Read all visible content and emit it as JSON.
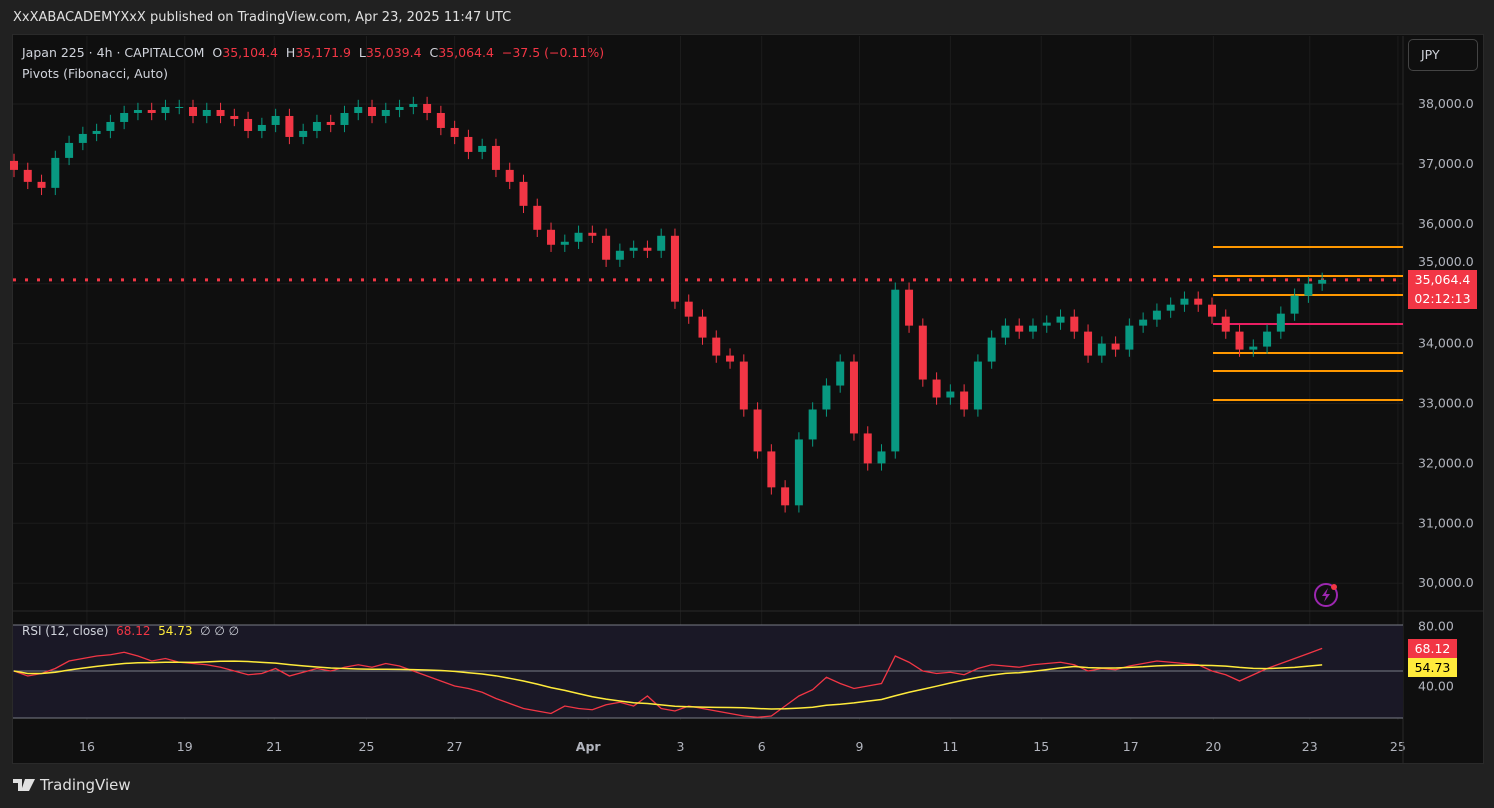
{
  "header": {
    "published": "XxXABACADEMYXxX published on TradingView.com, Apr 23, 2025 11:47 UTC"
  },
  "legend": {
    "symbol": "Japan 225 · 4h · CAPITALCOM",
    "o_label": "O",
    "o": "35,104.4",
    "h_label": "H",
    "h": "35,171.9",
    "l_label": "L",
    "l": "35,039.4",
    "c_label": "C",
    "c": "35,064.4",
    "change": "−37.5 (−0.11%)",
    "indicator": "Pivots (Fibonacci, Auto)"
  },
  "currency": "JPY",
  "current": {
    "price": "35,064.4",
    "countdown": "02:12:13"
  },
  "rsi": {
    "label": "RSI (12, close)",
    "value": "68.12",
    "ma": "54.73",
    "extra": "∅ ∅ ∅",
    "axis": [
      "80.00",
      "40.00"
    ]
  },
  "footer": {
    "brand": "TradingView"
  },
  "colors": {
    "up": "#089981",
    "down": "#f23645",
    "pivot": "#ff9800",
    "pivot_p": "#e91e63",
    "rsi": "#f23645",
    "rsi_ma": "#ffeb3b"
  },
  "chart_data": {
    "type": "candlestick",
    "title": "Japan 225 · 4h · CAPITALCOM",
    "ylim": [
      29550,
      38500
    ],
    "y_ticks": [
      "38,000.0",
      "37,000.0",
      "36,000.0",
      "35,000.0",
      "34,000.0",
      "33,000.0",
      "32,000.0",
      "31,000.0",
      "30,000.0"
    ],
    "y_tick_values": [
      38000,
      37000,
      36000,
      35000,
      34000,
      33000,
      32000,
      31000,
      30000
    ],
    "x_ticks": [
      {
        "label": "16",
        "index": 5.3
      },
      {
        "label": "19",
        "index": 12.4
      },
      {
        "label": "21",
        "index": 18.9
      },
      {
        "label": "25",
        "index": 25.6
      },
      {
        "label": "27",
        "index": 32
      },
      {
        "label": "Apr",
        "index": 41.7
      },
      {
        "label": "3",
        "index": 48.4
      },
      {
        "label": "6",
        "index": 54.3
      },
      {
        "label": "9",
        "index": 61.4
      },
      {
        "label": "11",
        "index": 68
      },
      {
        "label": "15",
        "index": 74.6
      },
      {
        "label": "17",
        "index": 81.1
      },
      {
        "label": "20",
        "index": 87.1
      },
      {
        "label": "23",
        "index": 94.1
      },
      {
        "label": "25",
        "index": 100.5
      }
    ],
    "close": [
      36900,
      36700,
      36600,
      37100,
      37350,
      37500,
      37550,
      37700,
      37850,
      37900,
      37850,
      37950,
      37950,
      37800,
      37900,
      37800,
      37750,
      37550,
      37650,
      37800,
      37450,
      37550,
      37700,
      37650,
      37850,
      37950,
      37800,
      37900,
      37950,
      38000,
      37850,
      37600,
      37450,
      37200,
      37300,
      36900,
      36700,
      36300,
      35900,
      35650,
      35700,
      35850,
      35800,
      35400,
      35550,
      35600,
      35550,
      35800,
      34700,
      34450,
      34100,
      33800,
      33700,
      32900,
      32200,
      31600,
      31300,
      32400,
      32900,
      33300,
      33700,
      32500,
      32000,
      32200,
      34900,
      34300,
      33400,
      33100,
      33200,
      32900,
      33700,
      34100,
      34300,
      34200,
      34300,
      34350,
      34450,
      34200,
      33800,
      34000,
      33900,
      34300,
      34400,
      34550,
      34650,
      34750,
      34650,
      34450,
      34200,
      33900,
      33950,
      34200,
      34500,
      34800,
      35000,
      35064.4
    ],
    "current_price": 35064.4,
    "pivots": [
      35613,
      35129,
      34811,
      34327,
      33843,
      33543,
      33058
    ],
    "rsi": [
      50,
      46,
      48,
      52,
      58,
      60,
      62,
      63,
      65,
      62,
      58,
      60,
      57,
      56,
      55,
      53,
      50,
      47,
      48,
      52,
      46,
      49,
      52,
      50,
      53,
      55,
      53,
      56,
      54,
      50,
      46,
      42,
      38,
      36,
      33,
      28,
      24,
      20,
      18,
      16,
      22,
      20,
      19,
      23,
      25,
      22,
      30,
      20,
      18,
      22,
      20,
      18,
      16,
      14,
      13,
      14,
      22,
      30,
      35,
      45,
      40,
      36,
      38,
      40,
      62,
      57,
      50,
      48,
      49,
      47,
      52,
      55,
      54,
      53,
      55,
      56,
      57,
      55,
      50,
      52,
      51,
      54,
      56,
      58,
      57,
      56,
      55,
      50,
      47,
      42,
      47,
      52,
      56,
      60,
      64,
      68.12
    ]
  }
}
